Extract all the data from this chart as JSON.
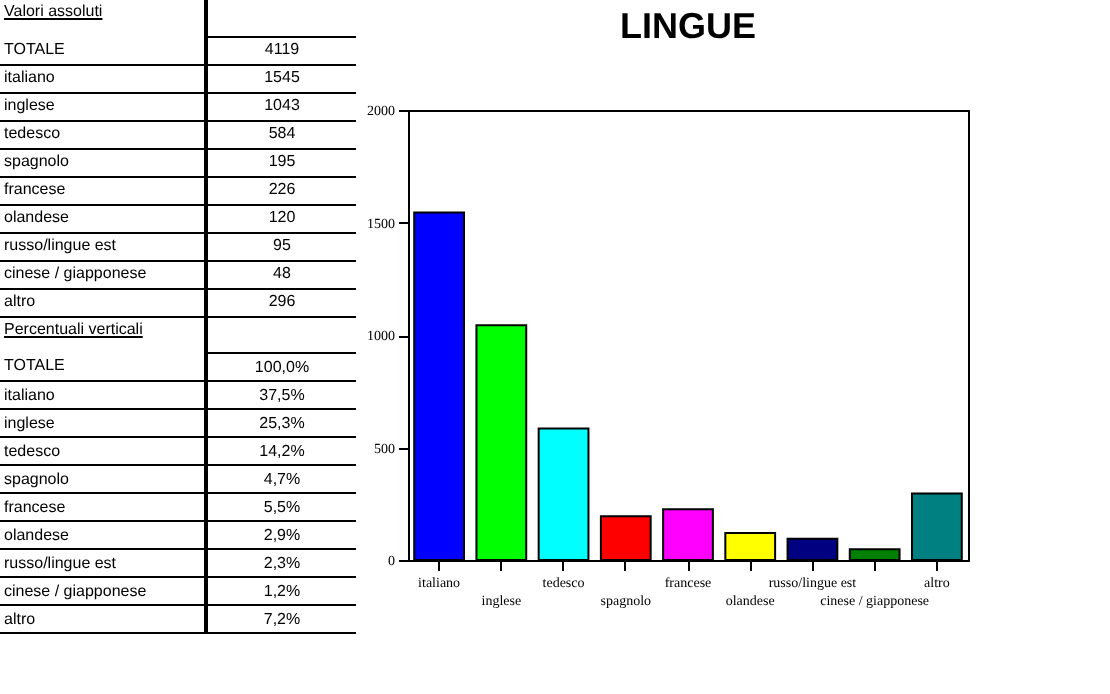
{
  "chart_data": [
    {
      "type": "other",
      "title": "Valori assoluti",
      "annotations": [
        "TOTALE",
        "4119",
        "italiano",
        "1545",
        "inglese",
        "1043",
        "tedesco",
        "584",
        "spagnolo",
        "195",
        "francese",
        "226",
        "olandese",
        "120",
        "russo/lingue est",
        "95",
        "cinese / giapponese",
        "48",
        "altro",
        "296"
      ]
    },
    {
      "type": "other",
      "title": "Percentuali verticali",
      "annotations": [
        "TOTALE",
        "100,0%",
        "italiano",
        "37,5%",
        "inglese",
        "25,3%",
        "tedesco",
        "14,2%",
        "spagnolo",
        "4,7%",
        "francese",
        "5,5%",
        "olandese",
        "2,9%",
        "russo/lingue est",
        "2,3%",
        "cinese / giapponese",
        "1,2%",
        "altro",
        "7,2%"
      ]
    },
    {
      "type": "bar",
      "title": "LINGUE",
      "categories": [
        "italiano",
        "inglese",
        "tedesco",
        "spagnolo",
        "francese",
        "olandese",
        "russo/lingue est",
        "cinese / giapponese",
        "altro"
      ],
      "values": [
        1545,
        1043,
        584,
        195,
        226,
        120,
        95,
        48,
        296
      ],
      "colors": [
        "#0000ff",
        "#00ff00",
        "#00ffff",
        "#ff0000",
        "#ff00ff",
        "#ffff00",
        "#000080",
        "#008000",
        "#008080"
      ],
      "ylim": [
        0,
        2000
      ],
      "yticks": [
        0,
        500,
        1000,
        1500,
        2000
      ],
      "grid": false
    }
  ]
}
